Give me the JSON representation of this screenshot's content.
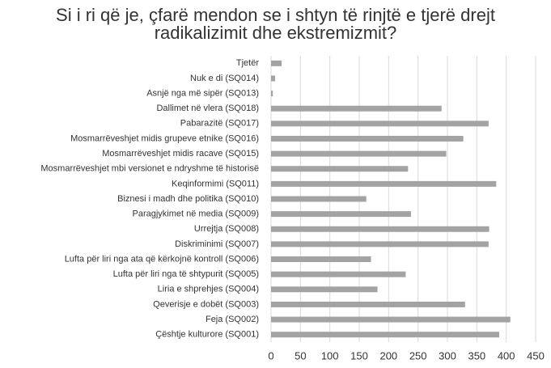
{
  "chart_data": {
    "type": "bar",
    "orientation": "horizontal",
    "title": "Si i ri që je, çfarë mendon se i shtyn të rinjtë e tjerë drejt radikalizimit dhe ekstremizmit?",
    "categories": [
      "Tjetër",
      "Nuk e di (SQ014)",
      "Asnjë nga më sipër (SQ013)",
      "Dallimet në vlera (SQ018)",
      "Pabarazitë (SQ017)",
      "Mosmarrëveshjet midis grupeve etnike (SQ016)",
      "Mosmarrëveshjet midis racave (SQ015)",
      "Mosmarrëveshjet mbi versionet e ndryshme të historisë",
      "Keqinformimi (SQ011)",
      "Biznesi i madh dhe politika (SQ010)",
      "Paragjykimet në media (SQ009)",
      "Urrejtja (SQ008)",
      "Diskriminimi (SQ007)",
      "Lufta për liri nga ata që kërkojnë kontroll (SQ006)",
      "Lufta për liri nga të shtypurit (SQ005)",
      "Liria e shprehjes (SQ004)",
      "Qeverisje e dobët (SQ003)",
      "Feja (SQ002)",
      "Çështje kulturore (SQ001)"
    ],
    "values": [
      18,
      7,
      3,
      290,
      370,
      327,
      298,
      233,
      383,
      162,
      238,
      371,
      370,
      170,
      229,
      181,
      330,
      407,
      388
    ],
    "color": "#a3a3a3",
    "xlim": [
      0,
      450
    ],
    "xticks": [
      0,
      50,
      100,
      150,
      200,
      250,
      300,
      350,
      400,
      450
    ],
    "grid": true
  }
}
